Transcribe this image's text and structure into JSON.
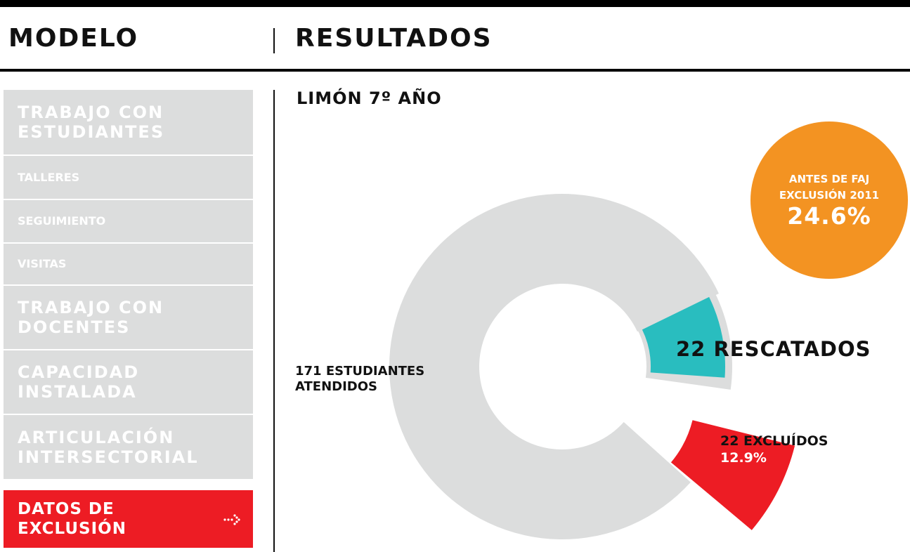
{
  "header": {
    "left": "MODELO",
    "right": "RESULTADOS"
  },
  "menu": {
    "items": [
      {
        "lines": [
          "TRABAJO CON",
          "ESTUDIANTES"
        ],
        "size": "big"
      },
      {
        "lines": [
          "TALLERES"
        ],
        "size": "small"
      },
      {
        "lines": [
          "SEGUIMIENTO"
        ],
        "size": "small"
      },
      {
        "lines": [
          "VISITAS"
        ],
        "size": "small"
      },
      {
        "lines": [
          "TRABAJO CON",
          "DOCENTES"
        ],
        "size": "big"
      },
      {
        "lines": [
          "CAPACIDAD",
          "INSTALADA"
        ],
        "size": "big"
      },
      {
        "lines": [
          "ARTICULACIÓN",
          "INTERSECTORIAL"
        ],
        "size": "big"
      }
    ],
    "active": {
      "lines": [
        "DATOS DE",
        "EXCLUSIÓN"
      ]
    }
  },
  "section": {
    "title": "LIMÓN 7º AÑO"
  },
  "badge": {
    "lines": [
      "ANTES DE FAJ",
      "EXCLUSIÓN 2011"
    ],
    "value": "24.6%"
  },
  "labels": {
    "total": [
      "171 ESTUDIANTES",
      "ATENDIDOS"
    ],
    "rescued": "22 RESCATADOS",
    "excluded": [
      "22 EXCLUÍDOS",
      "12.9%"
    ]
  }
}
